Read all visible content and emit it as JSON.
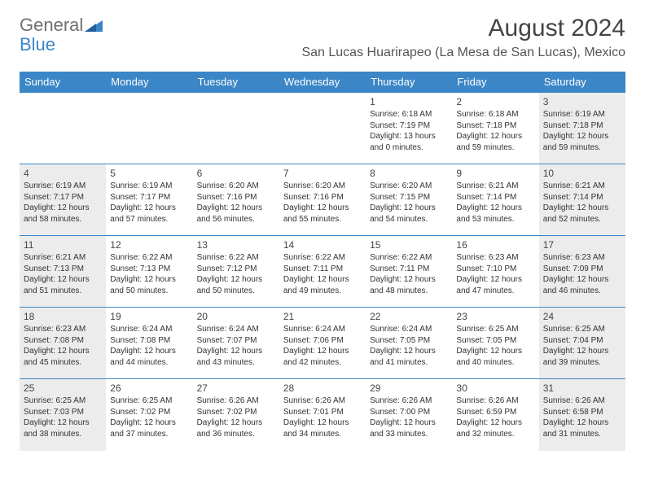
{
  "logo": {
    "text1": "General",
    "text2": "Blue"
  },
  "title": "August 2024",
  "location": "San Lucas Huarirapeo (La Mesa de San Lucas), Mexico",
  "colors": {
    "header_bg": "#3b86c6",
    "header_text": "#ffffff",
    "shaded_bg": "#ececec",
    "border": "#3b86c6",
    "logo_gray": "#6f6f6f",
    "logo_blue": "#3b86c6"
  },
  "weekdays": [
    "Sunday",
    "Monday",
    "Tuesday",
    "Wednesday",
    "Thursday",
    "Friday",
    "Saturday"
  ],
  "weeks": [
    [
      {
        "day": "",
        "sunrise": "",
        "sunset": "",
        "daylight": ""
      },
      {
        "day": "",
        "sunrise": "",
        "sunset": "",
        "daylight": ""
      },
      {
        "day": "",
        "sunrise": "",
        "sunset": "",
        "daylight": ""
      },
      {
        "day": "",
        "sunrise": "",
        "sunset": "",
        "daylight": ""
      },
      {
        "day": "1",
        "sunrise": "Sunrise: 6:18 AM",
        "sunset": "Sunset: 7:19 PM",
        "daylight": "Daylight: 13 hours and 0 minutes."
      },
      {
        "day": "2",
        "sunrise": "Sunrise: 6:18 AM",
        "sunset": "Sunset: 7:18 PM",
        "daylight": "Daylight: 12 hours and 59 minutes."
      },
      {
        "day": "3",
        "sunrise": "Sunrise: 6:19 AM",
        "sunset": "Sunset: 7:18 PM",
        "daylight": "Daylight: 12 hours and 59 minutes."
      }
    ],
    [
      {
        "day": "4",
        "sunrise": "Sunrise: 6:19 AM",
        "sunset": "Sunset: 7:17 PM",
        "daylight": "Daylight: 12 hours and 58 minutes."
      },
      {
        "day": "5",
        "sunrise": "Sunrise: 6:19 AM",
        "sunset": "Sunset: 7:17 PM",
        "daylight": "Daylight: 12 hours and 57 minutes."
      },
      {
        "day": "6",
        "sunrise": "Sunrise: 6:20 AM",
        "sunset": "Sunset: 7:16 PM",
        "daylight": "Daylight: 12 hours and 56 minutes."
      },
      {
        "day": "7",
        "sunrise": "Sunrise: 6:20 AM",
        "sunset": "Sunset: 7:16 PM",
        "daylight": "Daylight: 12 hours and 55 minutes."
      },
      {
        "day": "8",
        "sunrise": "Sunrise: 6:20 AM",
        "sunset": "Sunset: 7:15 PM",
        "daylight": "Daylight: 12 hours and 54 minutes."
      },
      {
        "day": "9",
        "sunrise": "Sunrise: 6:21 AM",
        "sunset": "Sunset: 7:14 PM",
        "daylight": "Daylight: 12 hours and 53 minutes."
      },
      {
        "day": "10",
        "sunrise": "Sunrise: 6:21 AM",
        "sunset": "Sunset: 7:14 PM",
        "daylight": "Daylight: 12 hours and 52 minutes."
      }
    ],
    [
      {
        "day": "11",
        "sunrise": "Sunrise: 6:21 AM",
        "sunset": "Sunset: 7:13 PM",
        "daylight": "Daylight: 12 hours and 51 minutes."
      },
      {
        "day": "12",
        "sunrise": "Sunrise: 6:22 AM",
        "sunset": "Sunset: 7:13 PM",
        "daylight": "Daylight: 12 hours and 50 minutes."
      },
      {
        "day": "13",
        "sunrise": "Sunrise: 6:22 AM",
        "sunset": "Sunset: 7:12 PM",
        "daylight": "Daylight: 12 hours and 50 minutes."
      },
      {
        "day": "14",
        "sunrise": "Sunrise: 6:22 AM",
        "sunset": "Sunset: 7:11 PM",
        "daylight": "Daylight: 12 hours and 49 minutes."
      },
      {
        "day": "15",
        "sunrise": "Sunrise: 6:22 AM",
        "sunset": "Sunset: 7:11 PM",
        "daylight": "Daylight: 12 hours and 48 minutes."
      },
      {
        "day": "16",
        "sunrise": "Sunrise: 6:23 AM",
        "sunset": "Sunset: 7:10 PM",
        "daylight": "Daylight: 12 hours and 47 minutes."
      },
      {
        "day": "17",
        "sunrise": "Sunrise: 6:23 AM",
        "sunset": "Sunset: 7:09 PM",
        "daylight": "Daylight: 12 hours and 46 minutes."
      }
    ],
    [
      {
        "day": "18",
        "sunrise": "Sunrise: 6:23 AM",
        "sunset": "Sunset: 7:08 PM",
        "daylight": "Daylight: 12 hours and 45 minutes."
      },
      {
        "day": "19",
        "sunrise": "Sunrise: 6:24 AM",
        "sunset": "Sunset: 7:08 PM",
        "daylight": "Daylight: 12 hours and 44 minutes."
      },
      {
        "day": "20",
        "sunrise": "Sunrise: 6:24 AM",
        "sunset": "Sunset: 7:07 PM",
        "daylight": "Daylight: 12 hours and 43 minutes."
      },
      {
        "day": "21",
        "sunrise": "Sunrise: 6:24 AM",
        "sunset": "Sunset: 7:06 PM",
        "daylight": "Daylight: 12 hours and 42 minutes."
      },
      {
        "day": "22",
        "sunrise": "Sunrise: 6:24 AM",
        "sunset": "Sunset: 7:05 PM",
        "daylight": "Daylight: 12 hours and 41 minutes."
      },
      {
        "day": "23",
        "sunrise": "Sunrise: 6:25 AM",
        "sunset": "Sunset: 7:05 PM",
        "daylight": "Daylight: 12 hours and 40 minutes."
      },
      {
        "day": "24",
        "sunrise": "Sunrise: 6:25 AM",
        "sunset": "Sunset: 7:04 PM",
        "daylight": "Daylight: 12 hours and 39 minutes."
      }
    ],
    [
      {
        "day": "25",
        "sunrise": "Sunrise: 6:25 AM",
        "sunset": "Sunset: 7:03 PM",
        "daylight": "Daylight: 12 hours and 38 minutes."
      },
      {
        "day": "26",
        "sunrise": "Sunrise: 6:25 AM",
        "sunset": "Sunset: 7:02 PM",
        "daylight": "Daylight: 12 hours and 37 minutes."
      },
      {
        "day": "27",
        "sunrise": "Sunrise: 6:26 AM",
        "sunset": "Sunset: 7:02 PM",
        "daylight": "Daylight: 12 hours and 36 minutes."
      },
      {
        "day": "28",
        "sunrise": "Sunrise: 6:26 AM",
        "sunset": "Sunset: 7:01 PM",
        "daylight": "Daylight: 12 hours and 34 minutes."
      },
      {
        "day": "29",
        "sunrise": "Sunrise: 6:26 AM",
        "sunset": "Sunset: 7:00 PM",
        "daylight": "Daylight: 12 hours and 33 minutes."
      },
      {
        "day": "30",
        "sunrise": "Sunrise: 6:26 AM",
        "sunset": "Sunset: 6:59 PM",
        "daylight": "Daylight: 12 hours and 32 minutes."
      },
      {
        "day": "31",
        "sunrise": "Sunrise: 6:26 AM",
        "sunset": "Sunset: 6:58 PM",
        "daylight": "Daylight: 12 hours and 31 minutes."
      }
    ]
  ]
}
